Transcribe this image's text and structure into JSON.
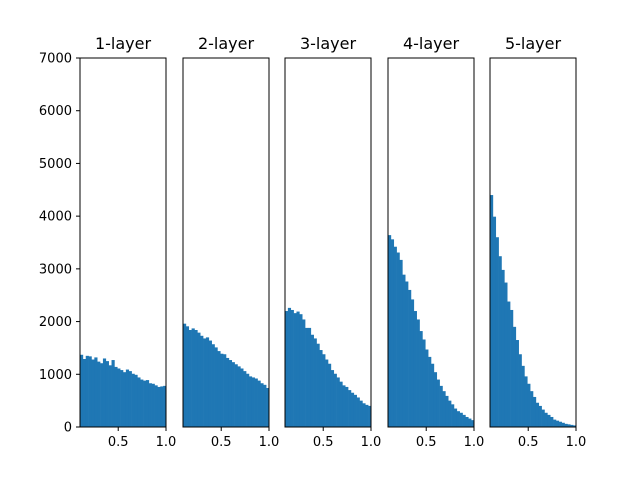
{
  "chart_data": {
    "type": "histogram",
    "layout": "1x5 subplots, shared y-axis",
    "bar_color": "#1f77b4",
    "xlim": [
      0.1,
      1.0
    ],
    "ylim": [
      0,
      7000
    ],
    "x_tick_values": [
      0.5,
      1.0
    ],
    "x_tick_labels": [
      "0.5",
      "1.0"
    ],
    "y_tick_values": [
      0,
      1000,
      2000,
      3000,
      4000,
      5000,
      6000,
      7000
    ],
    "y_tick_labels": [
      "0",
      "1000",
      "2000",
      "3000",
      "4000",
      "5000",
      "6000",
      "7000"
    ],
    "bin_edges_range": [
      0.1,
      1.0
    ],
    "bin_count": 30,
    "panels": [
      {
        "title": "1-layer",
        "counts": [
          1370,
          1290,
          1350,
          1340,
          1280,
          1320,
          1240,
          1210,
          1300,
          1250,
          1170,
          1270,
          1140,
          1110,
          1080,
          1040,
          1090,
          1060,
          1010,
          990,
          940,
          900,
          880,
          890,
          830,
          820,
          790,
          760,
          770,
          780
        ]
      },
      {
        "title": "2-layer",
        "counts": [
          1960,
          1910,
          1840,
          1870,
          1840,
          1790,
          1730,
          1680,
          1700,
          1640,
          1570,
          1510,
          1440,
          1390,
          1380,
          1310,
          1270,
          1230,
          1190,
          1150,
          1110,
          1060,
          1010,
          960,
          940,
          920,
          880,
          830,
          800,
          740
        ]
      },
      {
        "title": "3-layer",
        "counts": [
          2200,
          2260,
          2220,
          2160,
          2190,
          2140,
          2040,
          1880,
          1880,
          1750,
          1680,
          1580,
          1460,
          1380,
          1280,
          1200,
          1080,
          1010,
          940,
          860,
          790,
          760,
          700,
          650,
          610,
          560,
          500,
          450,
          420,
          400
        ]
      },
      {
        "title": "4-layer",
        "counts": [
          3640,
          3560,
          3420,
          3310,
          3170,
          2890,
          2760,
          2600,
          2420,
          2200,
          2040,
          1820,
          1660,
          1470,
          1330,
          1200,
          1040,
          900,
          780,
          680,
          590,
          500,
          430,
          350,
          300,
          270,
          230,
          190,
          160,
          130
        ]
      },
      {
        "title": "5-layer",
        "counts": [
          4400,
          3990,
          3600,
          3240,
          2980,
          2740,
          2380,
          2220,
          1900,
          1650,
          1380,
          1160,
          960,
          820,
          680,
          570,
          460,
          400,
          330,
          270,
          230,
          190,
          140,
          120,
          100,
          80,
          60,
          50,
          40,
          30
        ]
      }
    ]
  }
}
